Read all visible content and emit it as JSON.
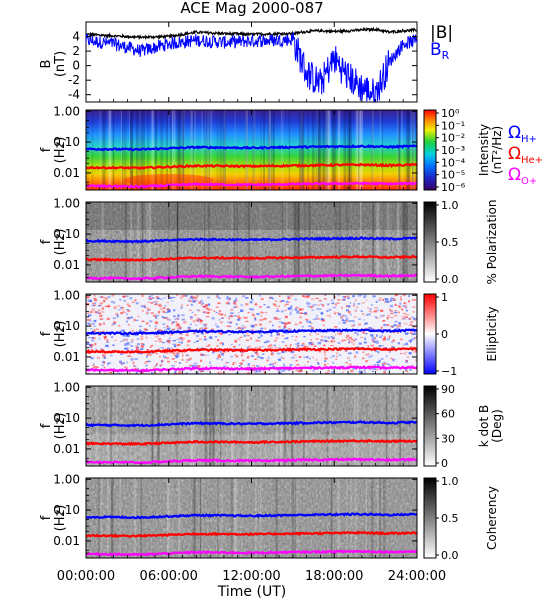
{
  "title": "ACE Mag 2000-087",
  "xlabel": "Time (UT)",
  "x_ticks": [
    "00:00:00",
    "06:00:00",
    "12:00:00",
    "18:00:00",
    "24:00:00"
  ],
  "colors": {
    "B_total": "#000000",
    "B_R": "#0000ff",
    "omega_H": "#0000ff",
    "omega_He": "#ff0000",
    "omega_O": "#ff00ff"
  },
  "chart_data": [
    {
      "type": "line",
      "panel": "B",
      "ylabel": [
        "B",
        "(nT)"
      ],
      "ylim": [
        -5,
        6
      ],
      "y_ticks": [
        "4",
        "2",
        "0",
        "-2",
        "-4"
      ],
      "legend": [
        "|B|",
        "B"
      ],
      "legend_sub": [
        "",
        "R"
      ],
      "x_hours": [
        0,
        2,
        4,
        6,
        8,
        10,
        12,
        14,
        15,
        16,
        17,
        18,
        19,
        20,
        21,
        22,
        23,
        24
      ],
      "series": [
        {
          "name": "|B|",
          "values": [
            4.3,
            4.1,
            3.9,
            4.0,
            4.6,
            4.4,
            4.3,
            4.4,
            4.4,
            4.7,
            4.8,
            4.7,
            4.8,
            4.9,
            5.0,
            4.6,
            4.8,
            4.9
          ]
        },
        {
          "name": "B_R",
          "values": [
            3.5,
            3.0,
            2.0,
            3.0,
            3.5,
            3.2,
            3.4,
            3.5,
            3.6,
            -1.0,
            -2.5,
            1.0,
            -1.5,
            -3.0,
            -4.0,
            0.5,
            3.0,
            3.5
          ]
        }
      ]
    },
    {
      "type": "heatmap",
      "panel": "intensity",
      "ylabel": [
        "f",
        "(Hz)"
      ],
      "y_ticks": [
        "1.00",
        "0.10",
        "0.01"
      ],
      "colorbar_label": [
        "Intensity",
        "(nT²/Hz)"
      ],
      "colorbar_ticks": [
        "10⁰",
        "10⁻¹",
        "10⁻²",
        "10⁻³",
        "10⁻⁴",
        "10⁻⁵",
        "10⁻⁶"
      ],
      "lines_legend": [
        {
          "base": "Ω",
          "sub": "H+"
        },
        {
          "base": "Ω",
          "sub": "He+"
        },
        {
          "base": "Ω",
          "sub": "O+"
        }
      ]
    },
    {
      "type": "heatmap",
      "panel": "polarization",
      "ylabel": [
        "f",
        "(Hz)"
      ],
      "y_ticks": [
        "1.00",
        "0.10",
        "0.01"
      ],
      "colorbar_label": [
        "% Polarization"
      ],
      "colorbar_ticks": [
        "1.0",
        "0.5",
        "0.0"
      ]
    },
    {
      "type": "heatmap",
      "panel": "ellipticity",
      "ylabel": [
        "f",
        "(Hz)"
      ],
      "y_ticks": [
        "1.00",
        "0.10",
        "0.01"
      ],
      "colorbar_label": [
        "Ellipticity"
      ],
      "colorbar_ticks": [
        "1",
        "0",
        "−1"
      ]
    },
    {
      "type": "heatmap",
      "panel": "kdotb",
      "ylabel": [
        "f",
        "(Hz)"
      ],
      "y_ticks": [
        "1.00",
        "0.10",
        "0.01"
      ],
      "colorbar_label": [
        "k dot B",
        "(Deg)"
      ],
      "colorbar_ticks": [
        "90",
        "60",
        "30",
        "0"
      ]
    },
    {
      "type": "heatmap",
      "panel": "coherency",
      "ylabel": [
        "f",
        "(Hz)"
      ],
      "y_ticks": [
        "1.00",
        "0.10",
        "0.01"
      ],
      "colorbar_label": [
        "Coherency"
      ],
      "colorbar_ticks": [
        "1.0",
        "0.5",
        "0.0"
      ]
    }
  ],
  "gyrofrequency_hz": {
    "x_hours": [
      0,
      4,
      8,
      12,
      16,
      18,
      20,
      22,
      24
    ],
    "H+": [
      0.06,
      0.058,
      0.068,
      0.065,
      0.07,
      0.072,
      0.074,
      0.07,
      0.074
    ],
    "He+": [
      0.015,
      0.0145,
      0.017,
      0.0165,
      0.0175,
      0.018,
      0.0185,
      0.0175,
      0.0185
    ],
    "O+": [
      0.0038,
      0.0036,
      0.0043,
      0.0041,
      0.0044,
      0.0045,
      0.0046,
      0.0044,
      0.0046
    ]
  }
}
